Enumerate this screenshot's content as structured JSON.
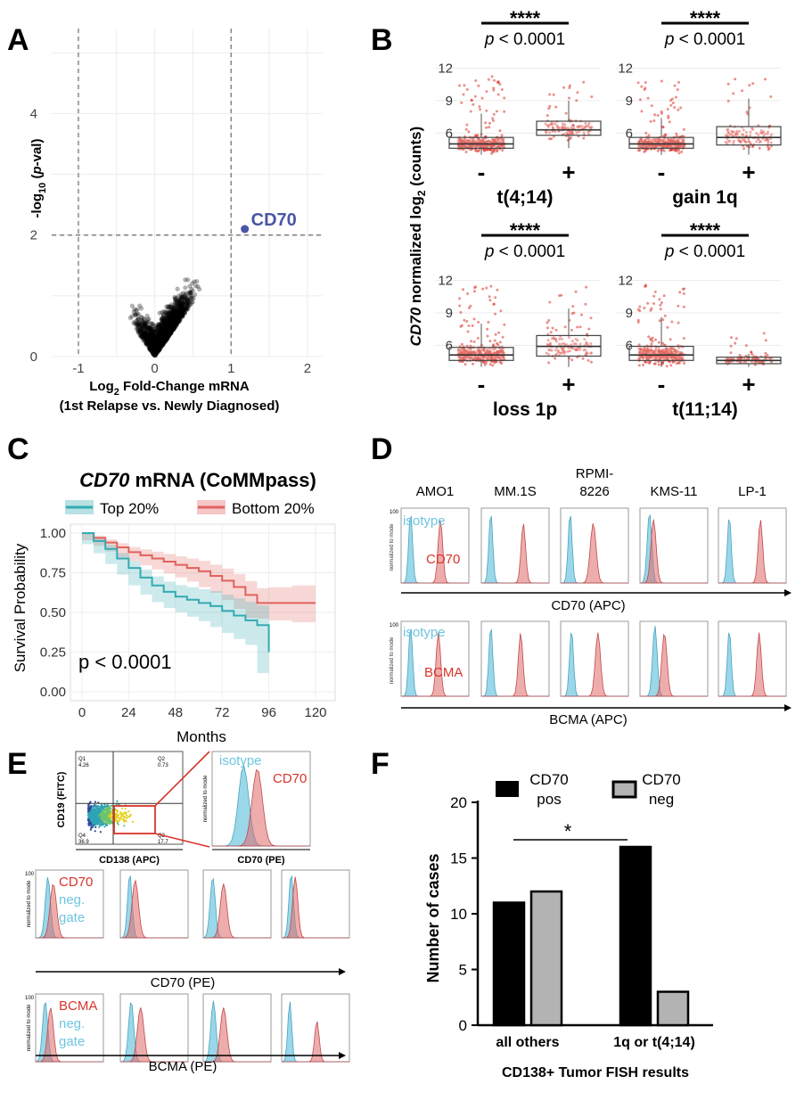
{
  "panel_letters": {
    "a": "A",
    "b": "B",
    "c": "C",
    "d": "D",
    "e": "E",
    "f": "F"
  },
  "panelA": {
    "xticks": [
      "-1",
      "0",
      "1",
      "2"
    ],
    "yticks": [
      "0",
      "2",
      "4"
    ],
    "xlabel_line1": "Log",
    "xlabel_sub": "2",
    "xlabel_line1_rest": " Fold-Change mRNA",
    "xlabel_line2": "(1st Relapse vs. Newly Diagnosed)",
    "ylabel_pre": "-log",
    "ylabel_sub": "10",
    "ylabel_p": "p",
    "ylabel_mid": " (",
    "ylabel_end": "-val)",
    "highlight_label": "CD70",
    "highlight_point": {
      "x": 1.18,
      "y": 2.1
    },
    "threshold_x": [
      -1,
      1
    ],
    "threshold_y": 2,
    "highlight_color": "#4a55a6"
  },
  "panelB": {
    "ylabel_gene": "CD70",
    "ylabel_rest": " normalized log",
    "ylabel_sub": "2",
    "ylabel_end": " (counts)",
    "yticks": [
      "6",
      "9",
      "12"
    ],
    "minus": "-",
    "plus": "+",
    "sig": "****",
    "pval_p": "p",
    "pval_rest": " < 0.0001",
    "groups": [
      {
        "label": "t(4;14)",
        "neg": {
          "q1": 4.6,
          "med": 5.0,
          "q3": 5.6,
          "lo": 4.0,
          "hi": 7.8
        },
        "pos": {
          "q1": 5.8,
          "med": 6.3,
          "q3": 7.1,
          "lo": 4.6,
          "hi": 9.0
        }
      },
      {
        "label": "gain 1q",
        "neg": {
          "q1": 4.6,
          "med": 5.0,
          "q3": 5.6,
          "lo": 4.0,
          "hi": 7.4
        },
        "pos": {
          "q1": 4.9,
          "med": 5.6,
          "q3": 6.6,
          "lo": 4.0,
          "hi": 9.2
        }
      },
      {
        "label": "loss 1p",
        "neg": {
          "q1": 4.6,
          "med": 5.1,
          "q3": 5.8,
          "lo": 4.0,
          "hi": 8.0
        },
        "pos": {
          "q1": 5.0,
          "med": 5.9,
          "q3": 6.9,
          "lo": 4.0,
          "hi": 9.4
        }
      },
      {
        "label": "t(11;14)",
        "neg": {
          "q1": 4.6,
          "med": 5.1,
          "q3": 5.9,
          "lo": 4.0,
          "hi": 8.6
        },
        "pos": {
          "q1": 4.3,
          "med": 4.6,
          "q3": 4.9,
          "lo": 4.0,
          "hi": 5.2
        }
      }
    ],
    "point_color": "#d9342b"
  },
  "panelC": {
    "title_gene": "CD70",
    "title_rest": " mRNA (CoMMpass)",
    "legend_top": "Top 20%",
    "legend_bottom": "Bottom 20%",
    "ylabel": "Survival Probability",
    "xlabel": "Months",
    "pvalue": "p < 0.0001",
    "xticks": [
      "0",
      "24",
      "48",
      "72",
      "96",
      "120"
    ],
    "yticks": [
      "0.00",
      "0.25",
      "0.50",
      "0.75",
      "1.00"
    ],
    "top_color": "#35aab2",
    "bottom_color": "#e0625d",
    "curves": {
      "top": [
        [
          0,
          1.0
        ],
        [
          6,
          0.95
        ],
        [
          12,
          0.9
        ],
        [
          18,
          0.84
        ],
        [
          24,
          0.78
        ],
        [
          30,
          0.72
        ],
        [
          36,
          0.67
        ],
        [
          42,
          0.63
        ],
        [
          48,
          0.6
        ],
        [
          54,
          0.58
        ],
        [
          60,
          0.56
        ],
        [
          66,
          0.54
        ],
        [
          72,
          0.51
        ],
        [
          78,
          0.48
        ],
        [
          84,
          0.45
        ],
        [
          90,
          0.42
        ],
        [
          96,
          0.25
        ]
      ],
      "bottom": [
        [
          0,
          1.0
        ],
        [
          6,
          0.97
        ],
        [
          12,
          0.94
        ],
        [
          18,
          0.91
        ],
        [
          24,
          0.88
        ],
        [
          30,
          0.86
        ],
        [
          36,
          0.84
        ],
        [
          42,
          0.82
        ],
        [
          48,
          0.8
        ],
        [
          54,
          0.78
        ],
        [
          60,
          0.76
        ],
        [
          66,
          0.73
        ],
        [
          72,
          0.7
        ],
        [
          78,
          0.66
        ],
        [
          84,
          0.61
        ],
        [
          90,
          0.56
        ],
        [
          96,
          0.56
        ],
        [
          108,
          0.56
        ],
        [
          120,
          0.56
        ]
      ]
    }
  },
  "panelD": {
    "cell_lines": [
      "AMO1",
      "MM.1S",
      "RPMI-\n8226",
      "KMS-11",
      "LP-1"
    ],
    "row1_axis": "CD70 (APC)",
    "row2_axis": "BCMA (APC)",
    "isotype": "isotype",
    "cd70": "CD70",
    "bcma": "BCMA",
    "ylabel": "normalized to mode",
    "ytick": "100",
    "iso_color": "#6ec6e0",
    "stain_color": "#e06a6a"
  },
  "panelE": {
    "dot_ylabel": "CD19 (FITC)",
    "dot_xlabel": "CD138 (APC)",
    "hist_xlabel": "CD70 (PE)",
    "isotype": "isotype",
    "cd70": "CD70",
    "gate_labels": {
      "q1": "Q1\n4.26",
      "q2": "Q2\n0.73",
      "q3": "Q3\n17.7",
      "q4": "Q4\n36.9"
    },
    "row1_label": "CD70",
    "row2_label": "BCMA",
    "neg_gate": "neg.\ngate",
    "row1_axis": "CD70 (PE)",
    "row2_axis": "BCMA (PE)",
    "ylabel": "normalized to mode",
    "ytick": "100"
  },
  "panelF": {
    "ylabel": "Number of cases",
    "xlabel": "CD138+ Tumor FISH results",
    "legend_pos": "CD70\npos",
    "legend_neg": "CD70\nneg",
    "sig": "*",
    "yticks": [
      "0",
      "5",
      "10",
      "15",
      "20"
    ],
    "chart_data": {
      "type": "bar",
      "categories": [
        "all others",
        "1q or t(4;14)"
      ],
      "series": [
        {
          "name": "CD70 pos",
          "values": [
            11,
            16
          ]
        },
        {
          "name": "CD70 neg",
          "values": [
            12,
            3
          ]
        }
      ],
      "ylim": [
        0,
        20
      ],
      "xlabel": "CD138+ Tumor FISH results",
      "ylabel": "Number of cases"
    }
  }
}
